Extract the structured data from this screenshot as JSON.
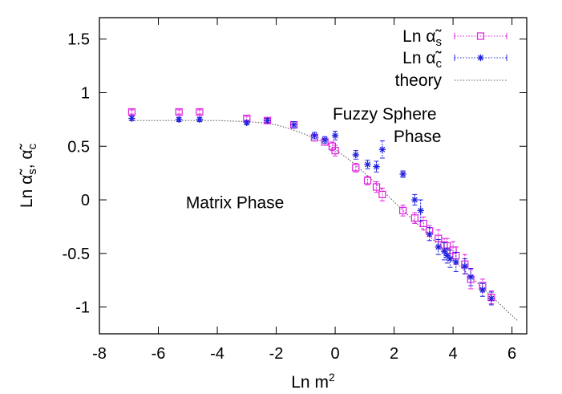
{
  "chart_data": {
    "type": "scatter",
    "xlabel": "Ln m²",
    "ylabel": "Ln α̃s, α̃c",
    "xlim": [
      -8,
      6.5
    ],
    "ylim": [
      -1.25,
      1.7
    ],
    "xticks": [
      -8,
      -6,
      -4,
      -2,
      0,
      2,
      4,
      6
    ],
    "yticks": [
      -1,
      -0.5,
      0,
      0.5,
      1,
      1.5
    ],
    "xtick_labels": [
      "-8",
      "-6",
      "-4",
      "-2",
      "0",
      "2",
      "4",
      "6"
    ],
    "ytick_labels": [
      "-1",
      "-0.5",
      "0",
      "0.5",
      "1",
      "1.5"
    ],
    "grid": false,
    "legend_position": "top-right",
    "annotations": [
      {
        "lines": [
          "Fuzzy Sphere",
          "Phase"
        ],
        "x": 3.6,
        "y": 0.6
      },
      {
        "lines": [
          "Matrix Phase"
        ],
        "x": -3.4,
        "y": -0.02
      }
    ],
    "series": [
      {
        "name": "Ln α̃s",
        "name_base": "Ln α̃",
        "name_sub": "s",
        "marker": "square",
        "color": "#e020e0",
        "points": [
          {
            "x": -6.9,
            "y": 0.82,
            "err": 0.02
          },
          {
            "x": -5.3,
            "y": 0.82,
            "err": 0.02
          },
          {
            "x": -4.6,
            "y": 0.82,
            "err": 0.02
          },
          {
            "x": -3.0,
            "y": 0.76,
            "err": 0.02
          },
          {
            "x": -2.3,
            "y": 0.74,
            "err": 0.02
          },
          {
            "x": -1.4,
            "y": 0.7,
            "err": 0.03
          },
          {
            "x": -0.7,
            "y": 0.58,
            "err": 0.03
          },
          {
            "x": -0.35,
            "y": 0.54,
            "err": 0.03
          },
          {
            "x": -0.1,
            "y": 0.5,
            "err": 0.04
          },
          {
            "x": 0.0,
            "y": 0.46,
            "err": 0.05
          },
          {
            "x": 0.7,
            "y": 0.3,
            "err": 0.04
          },
          {
            "x": 1.1,
            "y": 0.18,
            "err": 0.04
          },
          {
            "x": 1.4,
            "y": 0.12,
            "err": 0.05
          },
          {
            "x": 1.6,
            "y": 0.05,
            "err": 0.06
          },
          {
            "x": 2.3,
            "y": -0.1,
            "err": 0.05
          },
          {
            "x": 2.7,
            "y": -0.17,
            "err": 0.05
          },
          {
            "x": 3.0,
            "y": -0.22,
            "err": 0.06
          },
          {
            "x": 3.2,
            "y": -0.29,
            "err": 0.05
          },
          {
            "x": 3.5,
            "y": -0.36,
            "err": 0.08
          },
          {
            "x": 3.7,
            "y": -0.42,
            "err": 0.06
          },
          {
            "x": 3.8,
            "y": -0.43,
            "err": 0.07
          },
          {
            "x": 4.0,
            "y": -0.47,
            "err": 0.08
          },
          {
            "x": 4.1,
            "y": -0.52,
            "err": 0.08
          },
          {
            "x": 4.4,
            "y": -0.6,
            "err": 0.09
          },
          {
            "x": 4.6,
            "y": -0.74,
            "err": 0.09
          },
          {
            "x": 5.0,
            "y": -0.8,
            "err": 0.06
          },
          {
            "x": 5.3,
            "y": -0.91,
            "err": 0.06
          }
        ]
      },
      {
        "name": "Ln α̃c",
        "name_base": "Ln α̃",
        "name_sub": "c",
        "marker": "star",
        "color": "#2020e0",
        "points": [
          {
            "x": -6.9,
            "y": 0.76,
            "err": 0.02
          },
          {
            "x": -5.3,
            "y": 0.75,
            "err": 0.02
          },
          {
            "x": -4.6,
            "y": 0.75,
            "err": 0.02
          },
          {
            "x": -3.0,
            "y": 0.72,
            "err": 0.02
          },
          {
            "x": -2.3,
            "y": 0.74,
            "err": 0.02
          },
          {
            "x": -1.4,
            "y": 0.7,
            "err": 0.03
          },
          {
            "x": -0.7,
            "y": 0.6,
            "err": 0.03
          },
          {
            "x": -0.35,
            "y": 0.56,
            "err": 0.03
          },
          {
            "x": 0.0,
            "y": 0.6,
            "err": 0.04
          },
          {
            "x": 0.7,
            "y": 0.42,
            "err": 0.04
          },
          {
            "x": 1.1,
            "y": 0.33,
            "err": 0.04
          },
          {
            "x": 1.4,
            "y": 0.31,
            "err": 0.05
          },
          {
            "x": 1.6,
            "y": 0.47,
            "err": 0.08
          },
          {
            "x": 2.3,
            "y": 0.24,
            "err": 0.03
          },
          {
            "x": 2.7,
            "y": 0.0,
            "err": 0.05
          },
          {
            "x": 2.9,
            "y": -0.1,
            "err": 0.1
          },
          {
            "x": 3.2,
            "y": -0.32,
            "err": 0.06
          },
          {
            "x": 3.5,
            "y": -0.44,
            "err": 0.07
          },
          {
            "x": 3.7,
            "y": -0.48,
            "err": 0.08
          },
          {
            "x": 3.8,
            "y": -0.52,
            "err": 0.07
          },
          {
            "x": 3.9,
            "y": -0.55,
            "err": 0.08
          },
          {
            "x": 4.1,
            "y": -0.58,
            "err": 0.09
          },
          {
            "x": 4.4,
            "y": -0.62,
            "err": 0.07
          },
          {
            "x": 4.6,
            "y": -0.72,
            "err": 0.08
          },
          {
            "x": 5.0,
            "y": -0.84,
            "err": 0.06
          },
          {
            "x": 5.3,
            "y": -0.92,
            "err": 0.06
          }
        ]
      },
      {
        "name": "theory",
        "marker": "none",
        "line": "dotted",
        "color": "#666666",
        "x": [
          -7,
          -6,
          -5,
          -4,
          -3,
          -2.5,
          -2,
          -1.5,
          -1,
          -0.5,
          0,
          0.5,
          1,
          1.5,
          2,
          2.5,
          3,
          3.5,
          4,
          4.5,
          5,
          5.5,
          6,
          6.2
        ],
        "y": [
          0.74,
          0.74,
          0.74,
          0.74,
          0.73,
          0.72,
          0.7,
          0.66,
          0.61,
          0.55,
          0.47,
          0.37,
          0.25,
          0.12,
          -0.02,
          -0.15,
          -0.28,
          -0.42,
          -0.56,
          -0.69,
          -0.82,
          -0.95,
          -1.08,
          -1.13
        ]
      }
    ]
  }
}
